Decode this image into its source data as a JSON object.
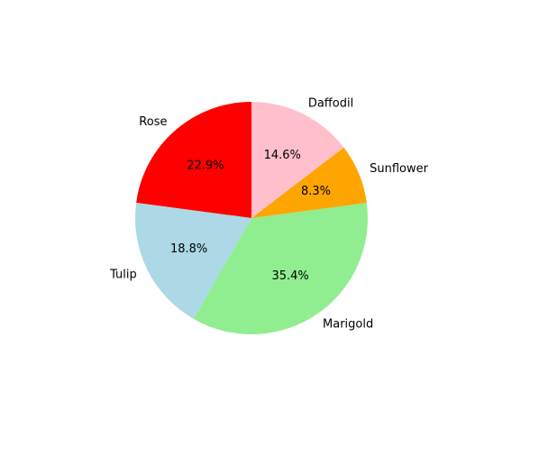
{
  "chart_data": {
    "type": "pie",
    "categories": [
      "Rose",
      "Tulip",
      "Marigold",
      "Sunflower",
      "Daffodil"
    ],
    "values": [
      22.9,
      18.8,
      35.4,
      8.3,
      14.6
    ],
    "percent_labels": [
      "22.9%",
      "18.8%",
      "35.4%",
      "8.3%",
      "14.6%"
    ],
    "colors": [
      "#ff0000",
      "#add8e6",
      "#90ee90",
      "#ffa500",
      "#ffc0cb"
    ],
    "start_angle_deg": 90,
    "direction": "counterclockwise",
    "title": ""
  }
}
